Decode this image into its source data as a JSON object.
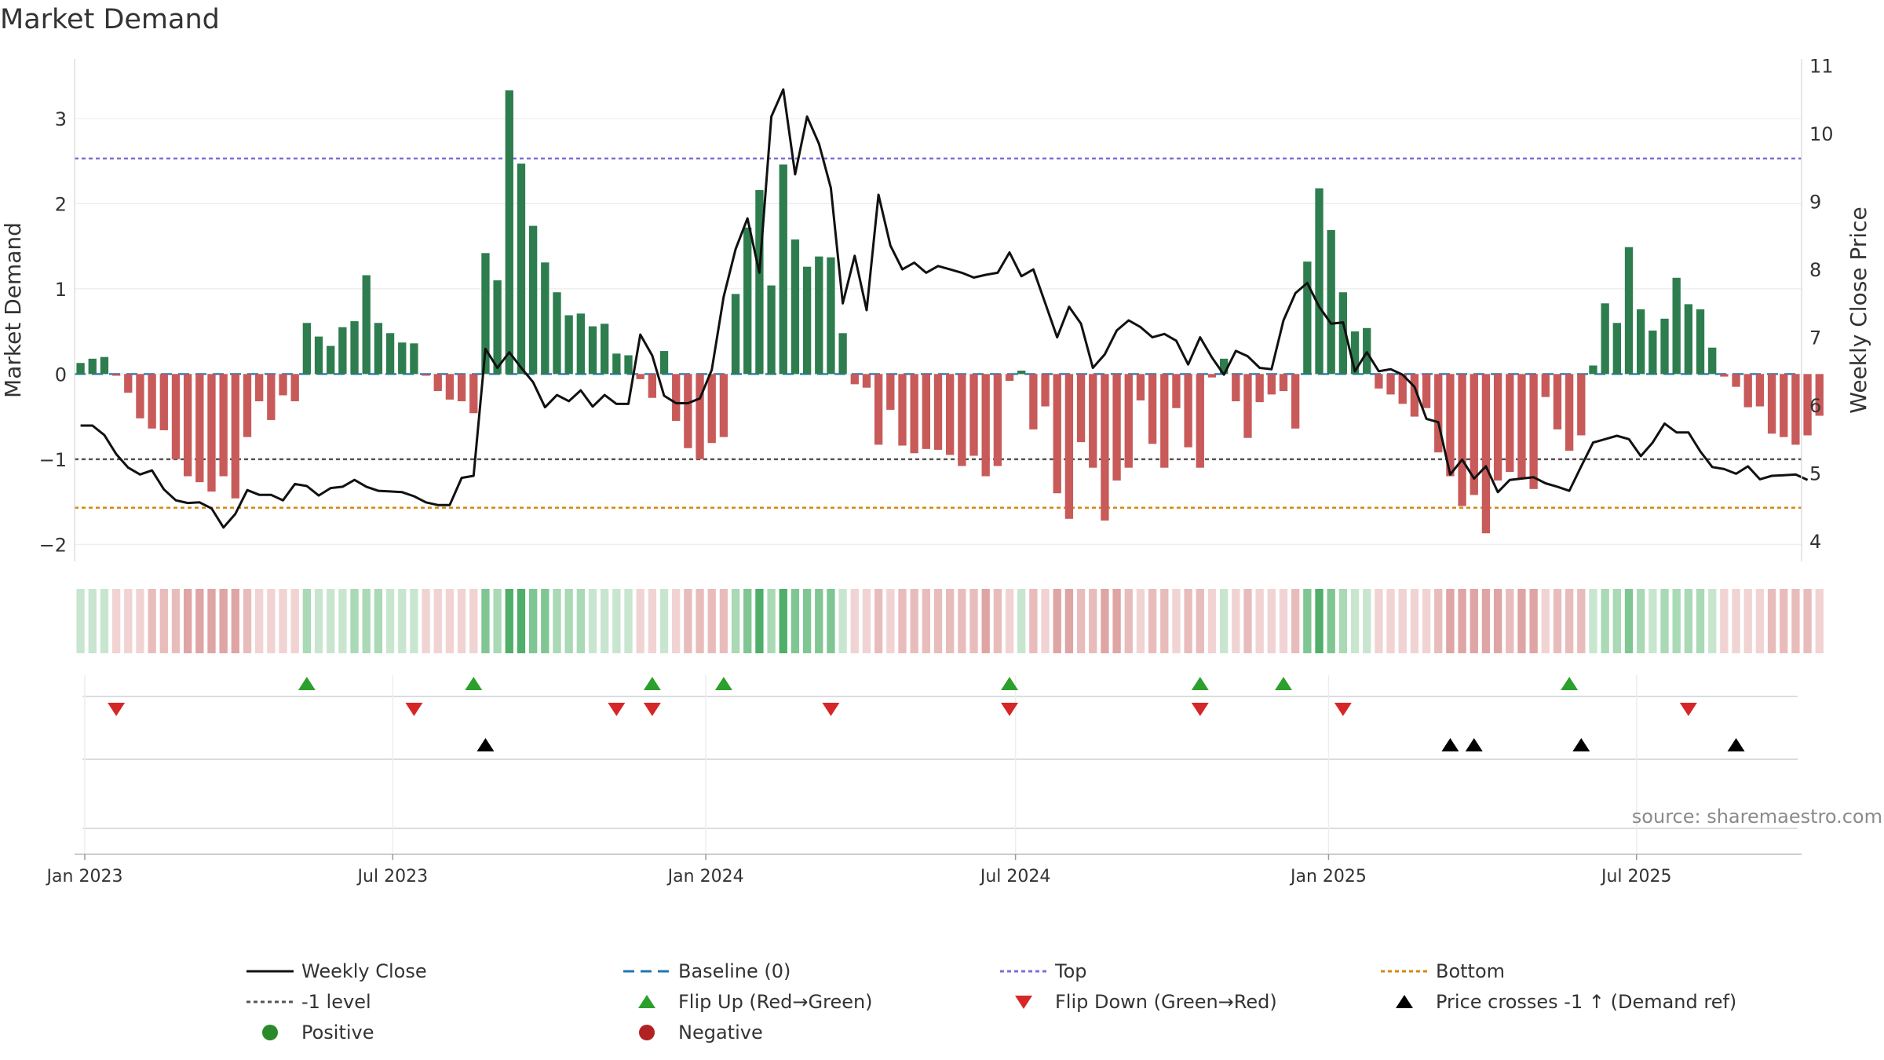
{
  "chart_data": {
    "type": "bar",
    "title": "Market Demand",
    "ylabel": "Market Demand",
    "y2label": "Weekly Close Price",
    "source": "source: sharemaestro.com",
    "ylim": [
      -2.2,
      3.7
    ],
    "y2lim": [
      3.7,
      11.1
    ],
    "yticks": [
      -2,
      -1,
      0,
      1,
      2,
      3
    ],
    "y2ticks": [
      4,
      5,
      6,
      7,
      8,
      9,
      10,
      11
    ],
    "x_tick_labels": [
      "Jan 2023",
      "Jul 2023",
      "Jan 2024",
      "Jul 2024",
      "Jan 2025",
      "Jul 2025"
    ],
    "x_tick_dates": [
      "2023-01-01",
      "2023-07-01",
      "2024-01-01",
      "2024-07-01",
      "2025-01-01",
      "2025-07-01"
    ],
    "x_range": [
      "2022-12-26",
      "2025-10-06"
    ],
    "first_week": "2022-12-26",
    "top_level": 2.53,
    "bottom_level": -1.57,
    "minus_one_level": -1,
    "colors": {
      "positive_bar": "#2e7d4f",
      "negative_bar": "#c85a5a",
      "close_line": "#111111",
      "baseline": "#1f77b4",
      "top": "#7b6fd6",
      "bottom": "#d4880f",
      "minus_one": "#555555",
      "flip_up": "#2ca02c",
      "flip_down": "#d62728",
      "price_cross": "#000000"
    },
    "demand": [
      0.13,
      0.18,
      0.2,
      -0.02,
      -0.22,
      -0.52,
      -0.64,
      -0.66,
      -1.0,
      -1.2,
      -1.27,
      -1.38,
      -1.2,
      -1.46,
      -0.74,
      -0.32,
      -0.54,
      -0.25,
      -0.32,
      0.6,
      0.44,
      0.33,
      0.55,
      0.62,
      1.16,
      0.6,
      0.48,
      0.37,
      0.36,
      -0.02,
      -0.2,
      -0.3,
      -0.32,
      -0.46,
      1.42,
      1.1,
      3.33,
      2.47,
      1.74,
      1.31,
      0.96,
      0.69,
      0.71,
      0.56,
      0.59,
      0.24,
      0.22,
      -0.06,
      -0.28,
      0.27,
      -0.55,
      -0.87,
      -1.0,
      -0.81,
      -0.74,
      0.94,
      1.72,
      2.16,
      1.04,
      2.46,
      1.58,
      1.26,
      1.38,
      1.37,
      0.48,
      -0.12,
      -0.16,
      -0.83,
      -0.42,
      -0.84,
      -0.93,
      -0.88,
      -0.89,
      -0.95,
      -1.08,
      -0.96,
      -1.2,
      -1.08,
      -0.08,
      0.04,
      -0.65,
      -0.38,
      -1.4,
      -1.7,
      -0.8,
      -1.1,
      -1.72,
      -1.25,
      -1.1,
      -0.31,
      -0.82,
      -1.1,
      -0.4,
      -0.86,
      -1.1,
      -0.04,
      0.18,
      -0.32,
      -0.75,
      -0.33,
      -0.24,
      -0.2,
      -0.64,
      1.32,
      2.18,
      1.69,
      0.96,
      0.5,
      0.54,
      -0.17,
      -0.24,
      -0.35,
      -0.5,
      -0.4,
      -0.92,
      -1.2,
      -1.55,
      -1.42,
      -1.87,
      -1.25,
      -1.15,
      -1.22,
      -1.35,
      -0.27,
      -0.65,
      -0.9,
      -0.72,
      0.1,
      0.83,
      0.6,
      1.49,
      0.76,
      0.51,
      0.65,
      1.13,
      0.82,
      0.76,
      0.31,
      -0.03,
      -0.15,
      -0.39,
      -0.38,
      -0.7,
      -0.74,
      -0.83,
      -0.72,
      -0.49
    ],
    "close": [
      5.7,
      5.7,
      5.56,
      5.28,
      5.08,
      4.98,
      5.04,
      4.76,
      4.6,
      4.56,
      4.57,
      4.48,
      4.2,
      4.4,
      4.75,
      4.68,
      4.68,
      4.6,
      4.84,
      4.81,
      4.67,
      4.78,
      4.8,
      4.9,
      4.8,
      4.74,
      4.73,
      4.72,
      4.66,
      4.57,
      4.53,
      4.53,
      4.93,
      4.96,
      6.83,
      6.55,
      6.78,
      6.55,
      6.34,
      5.97,
      6.15,
      6.06,
      6.22,
      5.98,
      6.15,
      6.02,
      6.02,
      7.04,
      6.73,
      6.14,
      6.03,
      6.03,
      6.1,
      6.52,
      7.6,
      8.3,
      8.75,
      7.95,
      10.25,
      10.65,
      9.4,
      10.25,
      9.85,
      9.2,
      7.5,
      8.2,
      7.4,
      9.1,
      8.35,
      8.0,
      8.1,
      7.95,
      8.05,
      8.0,
      7.95,
      7.88,
      7.92,
      7.95,
      8.25,
      7.9,
      8.0,
      7.5,
      7.0,
      7.45,
      7.2,
      6.55,
      6.75,
      7.1,
      7.25,
      7.15,
      7.0,
      7.05,
      6.95,
      6.6,
      7.0,
      6.7,
      6.45,
      6.8,
      6.72,
      6.55,
      6.53,
      7.25,
      7.65,
      7.8,
      7.45,
      7.2,
      7.22,
      6.5,
      6.78,
      6.5,
      6.53,
      6.45,
      6.27,
      5.8,
      5.75,
      4.98,
      5.2,
      4.92,
      5.1,
      4.72,
      4.9,
      4.92,
      4.94,
      4.85,
      4.8,
      4.74,
      5.1,
      5.45,
      5.5,
      5.55,
      5.5,
      5.25,
      5.45,
      5.73,
      5.6,
      5.6,
      5.32,
      5.09,
      5.06,
      4.99,
      5.1,
      4.91,
      4.96,
      4.97,
      4.98,
      4.9
    ],
    "strip_ramp": {
      "positive": [
        "#c8e6cf",
        "#a9d9b5",
        "#7fc692",
        "#4fae69"
      ],
      "negative": [
        "#f1d3d3",
        "#e9bcbc",
        "#dfa4a4",
        "#d39090"
      ]
    },
    "flip_up_weeks": [
      19,
      33,
      48,
      54,
      78,
      94,
      101,
      125
    ],
    "flip_down_weeks": [
      3,
      28,
      45,
      48,
      63,
      78,
      94,
      106,
      135
    ],
    "price_cross_weeks": [
      34,
      115,
      117,
      126,
      139
    ],
    "legend": [
      {
        "label": "Weekly Close",
        "symbol": "line-solid",
        "color": "#111111"
      },
      {
        "label": "Baseline (0)",
        "symbol": "line-dashed",
        "color": "#1f77b4"
      },
      {
        "label": "Top",
        "symbol": "line-dotted",
        "color": "#7b6fd6"
      },
      {
        "label": "Bottom",
        "symbol": "line-dotted",
        "color": "#d4880f"
      },
      {
        "label": "-1 level",
        "symbol": "line-dotted",
        "color": "#555555"
      },
      {
        "label": "Flip Up (Red→Green)",
        "symbol": "triangle-up",
        "color": "#2ca02c"
      },
      {
        "label": "Flip Down (Green→Red)",
        "symbol": "triangle-down",
        "color": "#d62728"
      },
      {
        "label": "Price crosses -1 ↑ (Demand ref)",
        "symbol": "triangle-up",
        "color": "#000000"
      },
      {
        "label": "Positive",
        "symbol": "circle",
        "color": "#2a8a2a"
      },
      {
        "label": "Negative",
        "symbol": "circle",
        "color": "#b22222"
      }
    ]
  }
}
